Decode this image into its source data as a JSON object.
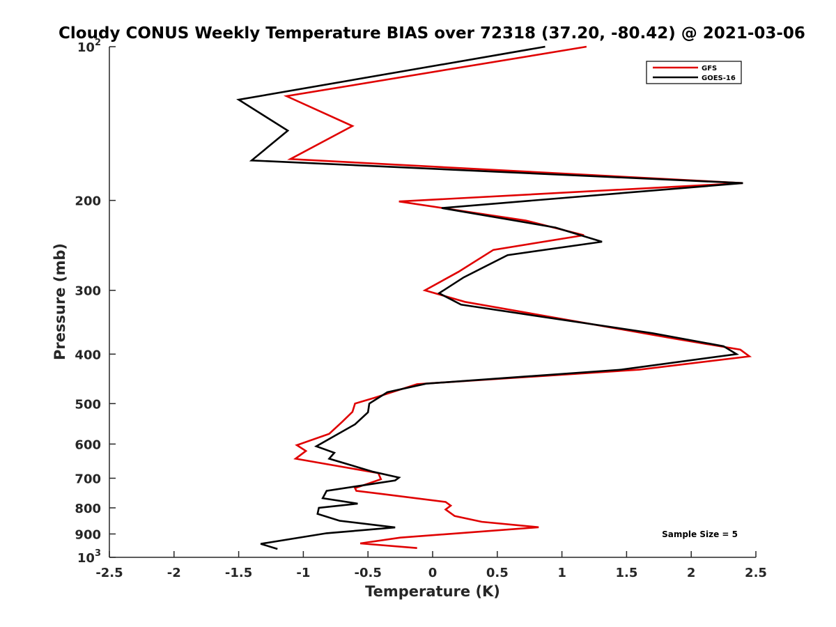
{
  "chart_data": {
    "type": "line",
    "title": "Cloudy CONUS Weekly Temperature BIAS over 72318 (37.20, -80.42) @ 2021-03-06",
    "xlabel": "Temperature (K)",
    "ylabel": "Pressure (mb)",
    "xlim": [
      -2.5,
      2.5
    ],
    "ylim": [
      100,
      1000
    ],
    "y_scale": "log",
    "y_reversed": true,
    "grid": false,
    "legend_position": "top-right",
    "x_ticks": [
      -2.5,
      -2,
      -1.5,
      -1,
      -0.5,
      0,
      0.5,
      1,
      1.5,
      2,
      2.5
    ],
    "x_tick_labels": [
      "-2.5",
      "-2",
      "-1.5",
      "-1",
      "-0.5",
      "0",
      "0.5",
      "1",
      "1.5",
      "2",
      "2.5"
    ],
    "y_ticks": [
      {
        "value": 100,
        "base": "10",
        "exp": "2"
      },
      {
        "value": 200,
        "label": "200"
      },
      {
        "value": 300,
        "label": "300"
      },
      {
        "value": 400,
        "label": "400"
      },
      {
        "value": 500,
        "label": "500"
      },
      {
        "value": 600,
        "label": "600"
      },
      {
        "value": 700,
        "label": "700"
      },
      {
        "value": 800,
        "label": "800"
      },
      {
        "value": 900,
        "label": "900"
      },
      {
        "value": 1000,
        "base": "10",
        "exp": "3"
      }
    ],
    "annotation": "Sample Size = 5",
    "series": [
      {
        "name": "GFS",
        "color": "#e00000",
        "points": [
          [
            1.19,
            100
          ],
          [
            -1.13,
            125
          ],
          [
            -0.62,
            143
          ],
          [
            -1.1,
            166
          ],
          [
            2.4,
            185
          ],
          [
            -0.26,
            201
          ],
          [
            0.72,
            219
          ],
          [
            1.17,
            234
          ],
          [
            0.47,
            250
          ],
          [
            0.2,
            276
          ],
          [
            -0.06,
            300
          ],
          [
            0.25,
            316
          ],
          [
            1.87,
            373
          ],
          [
            2.38,
            392
          ],
          [
            2.45,
            404
          ],
          [
            1.6,
            429
          ],
          [
            -0.12,
            458
          ],
          [
            -0.45,
            487
          ],
          [
            -0.6,
            500
          ],
          [
            -0.62,
            519
          ],
          [
            -0.7,
            543
          ],
          [
            -0.8,
            573
          ],
          [
            -1.05,
            603
          ],
          [
            -0.98,
            619
          ],
          [
            -1.06,
            641
          ],
          [
            -0.42,
            684
          ],
          [
            -0.4,
            703
          ],
          [
            -0.6,
            732
          ],
          [
            -0.59,
            741
          ],
          [
            -0.38,
            752
          ],
          [
            0.1,
            779
          ],
          [
            0.14,
            792
          ],
          [
            0.1,
            806
          ],
          [
            0.17,
            830
          ],
          [
            0.38,
            852
          ],
          [
            0.82,
            873
          ],
          [
            -0.25,
            915
          ],
          [
            -0.56,
            939
          ],
          [
            -0.12,
            959
          ]
        ]
      },
      {
        "name": "GOES-16",
        "color": "#000000",
        "points": [
          [
            0.87,
            100
          ],
          [
            -1.5,
            127
          ],
          [
            -1.12,
            146
          ],
          [
            -1.4,
            167
          ],
          [
            2.4,
            185
          ],
          [
            0.07,
            207
          ],
          [
            0.95,
            226
          ],
          [
            1.31,
            241
          ],
          [
            0.58,
            256
          ],
          [
            0.24,
            283
          ],
          [
            0.05,
            304
          ],
          [
            0.22,
            320
          ],
          [
            1.7,
            364
          ],
          [
            2.25,
            386
          ],
          [
            2.35,
            400
          ],
          [
            1.46,
            429
          ],
          [
            -0.05,
            457
          ],
          [
            -0.35,
            475
          ],
          [
            -0.49,
            500
          ],
          [
            -0.5,
            520
          ],
          [
            -0.6,
            549
          ],
          [
            -0.74,
            575
          ],
          [
            -0.9,
            606
          ],
          [
            -0.76,
            624
          ],
          [
            -0.8,
            641
          ],
          [
            -0.46,
            680
          ],
          [
            -0.26,
            698
          ],
          [
            -0.29,
            707
          ],
          [
            -0.82,
            741
          ],
          [
            -0.85,
            766
          ],
          [
            -0.58,
            785
          ],
          [
            -0.88,
            800
          ],
          [
            -0.89,
            822
          ],
          [
            -0.72,
            848
          ],
          [
            -0.29,
            874
          ],
          [
            -0.82,
            897
          ],
          [
            -1.33,
            941
          ],
          [
            -1.2,
            963
          ]
        ]
      }
    ]
  }
}
